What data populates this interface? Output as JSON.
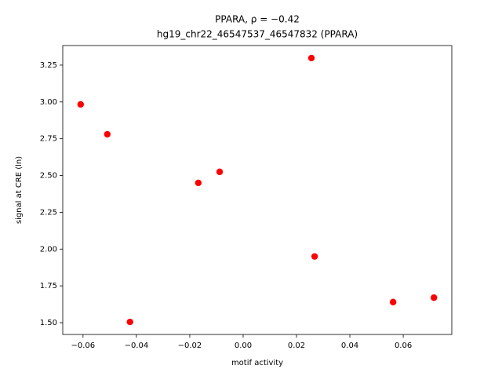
{
  "chart_data": {
    "type": "scatter",
    "title": "PPARA, ρ = −0.42",
    "subtitle": "hg19_chr22_46547537_46547832 (PPARA)",
    "x_label": "motif activity",
    "y_label": "signal at CRE (ln)",
    "color": "#ff0000",
    "x": [
      -0.0609,
      -0.0509,
      -0.0424,
      -0.0168,
      -0.0088,
      0.0256,
      0.0268,
      0.0562,
      0.0715
    ],
    "values": [
      2.983,
      2.78,
      1.505,
      2.45,
      2.525,
      3.298,
      1.95,
      1.64,
      1.67
    ],
    "xlim": [
      -0.0676,
      0.0782
    ],
    "ylim": [
      1.42,
      3.383
    ],
    "xticks": [
      {
        "value": -0.06,
        "label": "−0.06"
      },
      {
        "value": -0.04,
        "label": "−0.04"
      },
      {
        "value": -0.02,
        "label": "−0.02"
      },
      {
        "value": 0,
        "label": "0.00"
      },
      {
        "value": 0.02,
        "label": "0.02"
      },
      {
        "value": 0.04,
        "label": "0.04"
      },
      {
        "value": 0.06,
        "label": "0.06"
      }
    ],
    "yticks": [
      {
        "value": 1.5,
        "label": "1.50"
      },
      {
        "value": 1.75,
        "label": "1.75"
      },
      {
        "value": 2,
        "label": "2.00"
      },
      {
        "value": 2.25,
        "label": "2.25"
      },
      {
        "value": 2.5,
        "label": "2.50"
      },
      {
        "value": 2.75,
        "label": "2.75"
      },
      {
        "value": 3,
        "label": "3.00"
      },
      {
        "value": 3.25,
        "label": "3.25"
      }
    ]
  }
}
